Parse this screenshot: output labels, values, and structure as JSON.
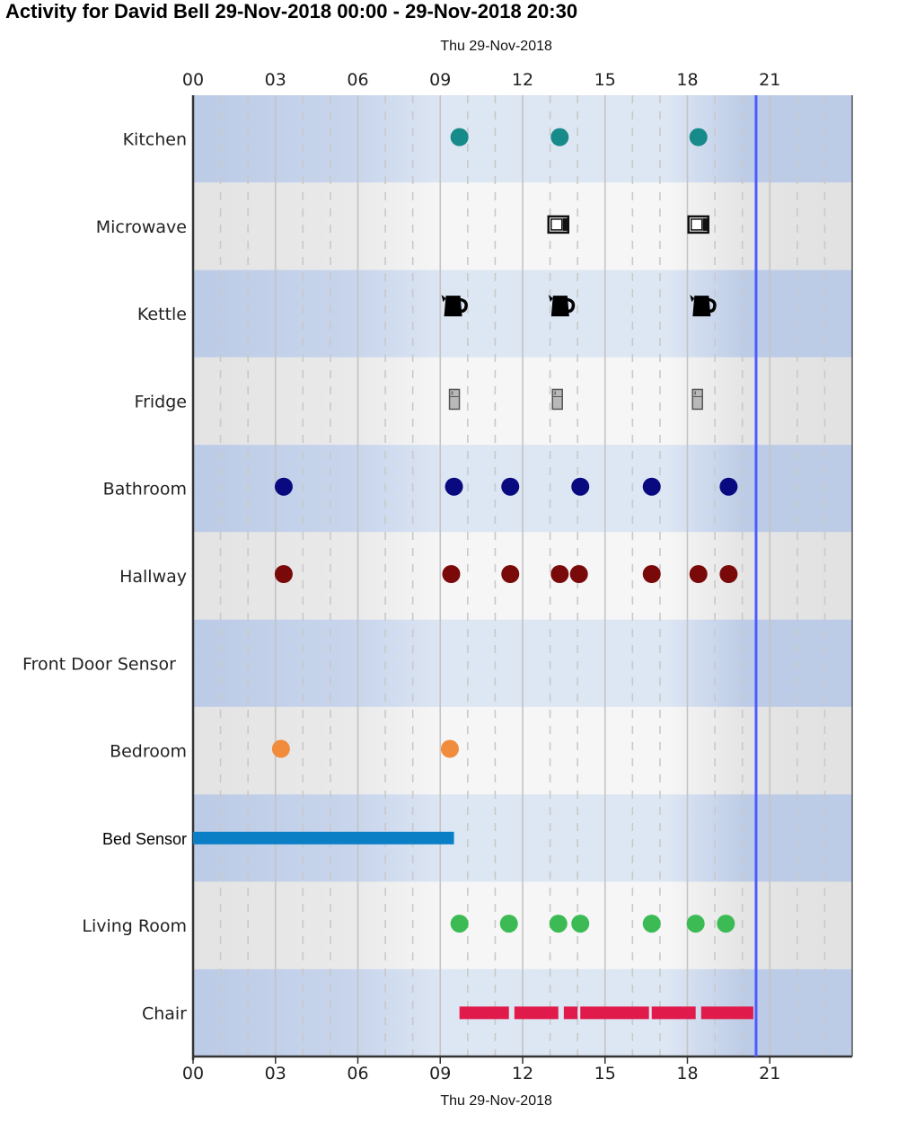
{
  "title": "Activity for David Bell 29-Nov-2018 00:00 - 29-Nov-2018 20:30",
  "chart_data": {
    "type": "scatter",
    "title": "Activity for David Bell 29-Nov-2018 00:00 - 29-Nov-2018 20:30",
    "x_axis_date_label": "Thu 29-Nov-2018",
    "x_ticks": [
      "00",
      "03",
      "06",
      "09",
      "12",
      "15",
      "18",
      "21"
    ],
    "x_range_hours": [
      0,
      24
    ],
    "grid": true,
    "current_time_hour": 20.5,
    "current_time_color": "#4d5cff",
    "rows": [
      {
        "label": "Kitchen",
        "mark": "dot",
        "color": "#178a8a",
        "events": [
          9.7,
          13.35,
          18.4
        ]
      },
      {
        "label": "Microwave",
        "mark": "microwave-icon",
        "color": "#111111",
        "events": [
          13.3,
          18.4
        ]
      },
      {
        "label": "Kettle",
        "mark": "kettle-icon",
        "color": "#000000",
        "events": [
          9.5,
          13.4,
          18.55
        ]
      },
      {
        "label": "Fridge",
        "mark": "fridge-icon",
        "color": "#8a8a8a",
        "events": [
          9.5,
          13.25,
          18.35
        ]
      },
      {
        "label": "Bathroom",
        "mark": "dot",
        "color": "#0a0a80",
        "events": [
          3.3,
          9.5,
          11.55,
          14.1,
          16.7,
          19.5
        ]
      },
      {
        "label": "Hallway",
        "mark": "dot",
        "color": "#7a0a0a",
        "events": [
          3.3,
          9.4,
          11.55,
          13.35,
          14.05,
          16.7,
          18.4,
          19.5
        ]
      },
      {
        "label": "Front Door Sensor",
        "mark": "dot",
        "color": "#000000",
        "events": []
      },
      {
        "label": "Bedroom",
        "mark": "dot",
        "color": "#f08c3c",
        "events": [
          3.2,
          9.35
        ]
      },
      {
        "label": "Bed Sensor",
        "mark": "bar",
        "color": "#0a7fc6",
        "intervals": [
          [
            0,
            9.5
          ]
        ]
      },
      {
        "label": "Living Room",
        "mark": "dot",
        "color": "#3cbb55",
        "events": [
          9.7,
          11.5,
          13.3,
          14.1,
          16.7,
          18.3,
          19.4
        ]
      },
      {
        "label": "Chair",
        "mark": "bar",
        "color": "#e01a4b",
        "intervals": [
          [
            9.7,
            11.5
          ],
          [
            11.7,
            13.3
          ],
          [
            13.5,
            14.0
          ],
          [
            14.1,
            16.6
          ],
          [
            16.7,
            18.3
          ],
          [
            18.5,
            20.4
          ]
        ]
      }
    ]
  }
}
